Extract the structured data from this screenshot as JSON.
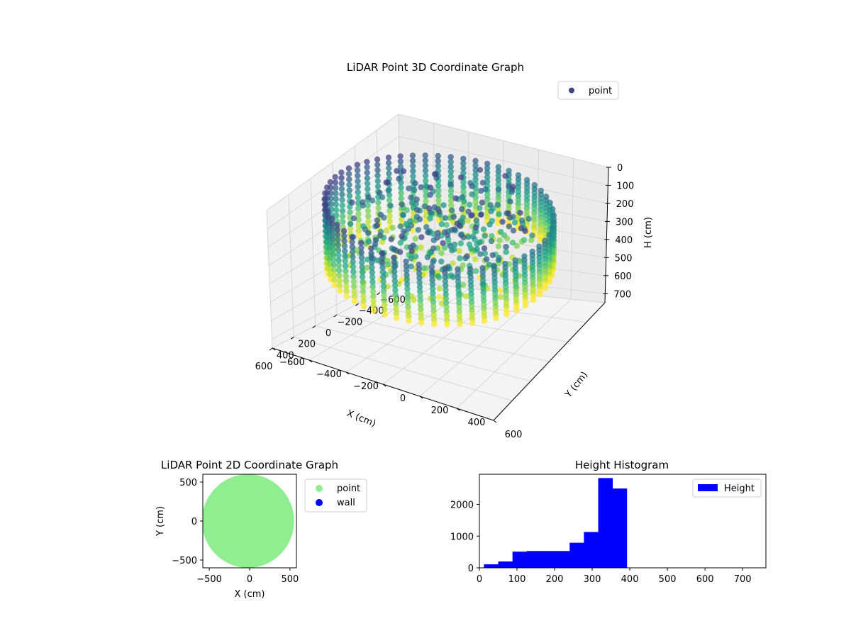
{
  "chart_data": [
    {
      "type": "scatter",
      "projection": "3d",
      "title": "LiDAR Point 3D Coordinate Graph",
      "xlabel": "X (cm)",
      "ylabel": "Y (cm)",
      "zlabel": "H (cm)",
      "xlim": [
        -600,
        600
      ],
      "ylim": [
        -600,
        600
      ],
      "zlim": [
        0,
        750
      ],
      "z_inverted": true,
      "x_ticks": [
        "−600",
        "−400",
        "−200",
        "0",
        "200",
        "400",
        "600"
      ],
      "y_ticks": [
        "−600",
        "−400",
        "−200",
        "0",
        "200",
        "400",
        "600"
      ],
      "z_ticks": [
        "0",
        "100",
        "200",
        "300",
        "400",
        "500",
        "600",
        "700"
      ],
      "grid": true,
      "legend": {
        "placement": "top-right",
        "entries": [
          "point"
        ]
      },
      "colormap": "viridis",
      "colors": {
        "legend_marker": "#414487"
      },
      "shape": "circular wall of scan points around the scanner, radius about 550 cm, heights about 0 to 390 cm"
    },
    {
      "type": "scatter",
      "title": "LiDAR Point 2D Coordinate Graph",
      "xlabel": "X (cm)",
      "ylabel": "Y (cm)",
      "xlim": [
        -580,
        580
      ],
      "ylim": [
        -600,
        600
      ],
      "x_ticks": [
        "−500",
        "0",
        "500"
      ],
      "y_ticks": [
        "−500",
        "0",
        "500"
      ],
      "legend": {
        "placement": "outside-right",
        "entries": [
          "point",
          "wall"
        ]
      },
      "series": [
        {
          "name": "point",
          "color": "#90ee90",
          "shape": "filled disk, radius about 560 cm"
        },
        {
          "name": "wall",
          "color": "#0000ff"
        }
      ]
    },
    {
      "type": "bar",
      "subtype": "histogram",
      "title": "Height Histogram",
      "xlim": [
        0,
        762
      ],
      "ylim": [
        0,
        2950
      ],
      "x_ticks": [
        "0",
        "100",
        "200",
        "300",
        "400",
        "500",
        "600",
        "700"
      ],
      "y_ticks": [
        "0",
        "1000",
        "2000"
      ],
      "legend": {
        "placement": "top-right",
        "entries": [
          "Height"
        ]
      },
      "color": "#0000ff",
      "bins": [
        {
          "x0": 12,
          "x1": 50,
          "count": 110
        },
        {
          "x0": 50,
          "x1": 88,
          "count": 200
        },
        {
          "x0": 88,
          "x1": 126,
          "count": 510
        },
        {
          "x0": 126,
          "x1": 164,
          "count": 530
        },
        {
          "x0": 164,
          "x1": 202,
          "count": 530
        },
        {
          "x0": 202,
          "x1": 240,
          "count": 530
        },
        {
          "x0": 240,
          "x1": 278,
          "count": 790
        },
        {
          "x0": 278,
          "x1": 316,
          "count": 1130
        },
        {
          "x0": 316,
          "x1": 354,
          "count": 2830
        },
        {
          "x0": 354,
          "x1": 392,
          "count": 2500
        }
      ]
    }
  ]
}
